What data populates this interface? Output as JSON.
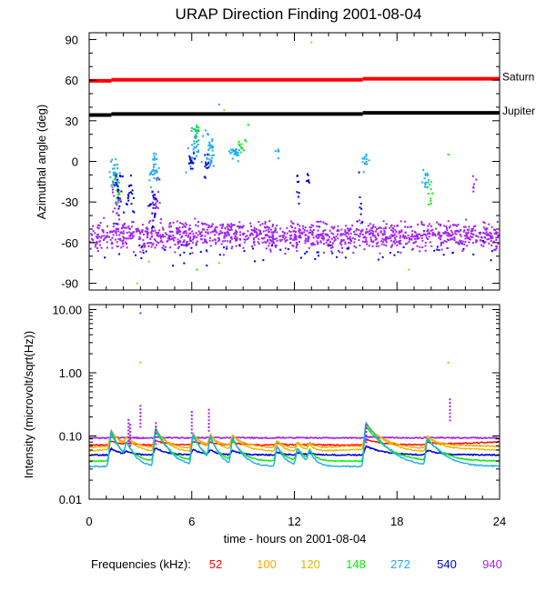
{
  "chart_data": {
    "title": "URAP Direction Finding  2001-08-04",
    "xlabel": "time - hours on 2001-08-04",
    "xlim": [
      0,
      24
    ],
    "x_ticks": [
      "0",
      "6",
      "12",
      "18",
      "24"
    ],
    "top": {
      "type": "scatter",
      "ylabel": "Azimuthal angle (deg)",
      "ylim": [
        -95,
        95
      ],
      "y_ticks": [
        "90",
        "60",
        "30",
        "0",
        "-30",
        "-60",
        "-90"
      ],
      "reference_lines": [
        {
          "name": "Saturn",
          "color": "#ff0000",
          "start": 59.5,
          "end": 61.0
        },
        {
          "name": "Jupiter",
          "color": "#000000",
          "start": 34.2,
          "end": 35.8
        }
      ],
      "clusters": [
        {
          "x": 1.5,
          "y": -10,
          "n": 36,
          "sx": 0.15,
          "sy": 6,
          "freq": "272"
        },
        {
          "x": 1.6,
          "y": -22,
          "n": 14,
          "sx": 0.12,
          "sy": 5,
          "freq": "148"
        },
        {
          "x": 1.7,
          "y": -25,
          "n": 24,
          "sx": 0.15,
          "sy": 10,
          "freq": "540"
        },
        {
          "x": 2.4,
          "y": -28,
          "n": 18,
          "sx": 0.12,
          "sy": 9,
          "freq": "540"
        },
        {
          "x": 3.8,
          "y": -8,
          "n": 32,
          "sx": 0.15,
          "sy": 6,
          "freq": "272"
        },
        {
          "x": 3.7,
          "y": -30,
          "n": 22,
          "sx": 0.12,
          "sy": 11,
          "freq": "540"
        },
        {
          "x": 6.2,
          "y": 12,
          "n": 40,
          "sx": 0.2,
          "sy": 8,
          "freq": "272"
        },
        {
          "x": 6.0,
          "y": 0,
          "n": 16,
          "sx": 0.12,
          "sy": 4,
          "freq": "540"
        },
        {
          "x": 6.3,
          "y": 24,
          "n": 8,
          "sx": 0.1,
          "sy": 4,
          "freq": "148"
        },
        {
          "x": 7.1,
          "y": 7,
          "n": 32,
          "sx": 0.15,
          "sy": 6,
          "freq": "272"
        },
        {
          "x": 6.9,
          "y": -3,
          "n": 12,
          "sx": 0.1,
          "sy": 5,
          "freq": "540"
        },
        {
          "x": 8.5,
          "y": 6,
          "n": 24,
          "sx": 0.15,
          "sy": 3,
          "freq": "272"
        },
        {
          "x": 8.9,
          "y": 11,
          "n": 10,
          "sx": 0.1,
          "sy": 3,
          "freq": "148"
        },
        {
          "x": 11.0,
          "y": 7,
          "n": 6,
          "sx": 0.05,
          "sy": 2,
          "freq": "272"
        },
        {
          "x": 12.2,
          "y": -20,
          "n": 8,
          "sx": 0.05,
          "sy": 7,
          "freq": "540"
        },
        {
          "x": 12.8,
          "y": -12,
          "n": 6,
          "sx": 0.05,
          "sy": 3,
          "freq": "540"
        },
        {
          "x": 16.1,
          "y": 0,
          "n": 14,
          "sx": 0.1,
          "sy": 4,
          "freq": "272"
        },
        {
          "x": 15.9,
          "y": -30,
          "n": 8,
          "sx": 0.08,
          "sy": 10,
          "freq": "540"
        },
        {
          "x": 19.7,
          "y": -13,
          "n": 14,
          "sx": 0.1,
          "sy": 5,
          "freq": "272"
        },
        {
          "x": 19.9,
          "y": -22,
          "n": 10,
          "sx": 0.1,
          "sy": 5,
          "freq": "148"
        },
        {
          "x": 22.5,
          "y": -20,
          "n": 6,
          "sx": 0.05,
          "sy": 5,
          "freq": "940"
        },
        {
          "x": 1.5,
          "y": -33,
          "n": 16,
          "sx": 0.12,
          "sy": 8,
          "freq": "940"
        },
        {
          "x": 3.9,
          "y": -30,
          "n": 14,
          "sx": 0.12,
          "sy": 8,
          "freq": "940"
        }
      ],
      "band": {
        "freq": "940",
        "center": -55,
        "spread": 5,
        "count": 1300
      },
      "band_low": {
        "freq": "540",
        "center": -66,
        "spread": 4,
        "count": 60
      },
      "outliers": [
        {
          "x": 13.0,
          "y": 88,
          "freq": "100"
        },
        {
          "x": 7.6,
          "y": 42,
          "freq": "272"
        },
        {
          "x": 9.3,
          "y": 27,
          "freq": "148"
        },
        {
          "x": 7.9,
          "y": 38,
          "freq": "120"
        },
        {
          "x": 21.0,
          "y": 5,
          "freq": "148"
        },
        {
          "x": 2.8,
          "y": -90,
          "freq": "120"
        },
        {
          "x": 6.3,
          "y": -80,
          "freq": "148"
        },
        {
          "x": 7.6,
          "y": -75,
          "freq": "100"
        },
        {
          "x": 3.5,
          "y": -74,
          "freq": "100"
        },
        {
          "x": 18.7,
          "y": -80,
          "freq": "100"
        },
        {
          "x": 4.9,
          "y": -77,
          "freq": "540"
        },
        {
          "x": 23.5,
          "y": -73,
          "freq": "540"
        },
        {
          "x": 15.0,
          "y": -71,
          "freq": "540"
        }
      ]
    },
    "bottom": {
      "type": "line",
      "ylabel": "Intensity (microvolt/sqrt(Hz))",
      "yscale": "log",
      "ylim": [
        0.01,
        12
      ],
      "y_ticks": [
        "10.00",
        "1.00",
        "0.10",
        "0.01"
      ],
      "baselines": [
        {
          "freq": "940",
          "y": 0.093
        },
        {
          "freq": "52",
          "y": 0.072
        },
        {
          "freq": "100",
          "y": 0.066
        },
        {
          "freq": "120",
          "y": 0.058
        },
        {
          "freq": "540",
          "y": 0.05
        },
        {
          "freq": "148",
          "y": 0.04
        },
        {
          "freq": "272",
          "y": 0.033
        }
      ],
      "bursts": [
        {
          "t": 1.3,
          "amp": 0.06,
          "w": 0.5
        },
        {
          "t": 2.2,
          "amp": 0.025,
          "w": 0.4
        },
        {
          "t": 3.9,
          "amp": 0.07,
          "w": 0.6
        },
        {
          "t": 6.1,
          "amp": 0.05,
          "w": 0.5
        },
        {
          "t": 7.1,
          "amp": 0.04,
          "w": 0.4
        },
        {
          "t": 8.4,
          "amp": 0.04,
          "w": 0.5
        },
        {
          "t": 11.0,
          "amp": 0.025,
          "w": 0.4
        },
        {
          "t": 12.2,
          "amp": 0.02,
          "w": 0.4
        },
        {
          "t": 12.9,
          "amp": 0.015,
          "w": 0.3
        },
        {
          "t": 16.2,
          "amp": 0.09,
          "w": 0.9
        },
        {
          "t": 19.8,
          "amp": 0.04,
          "w": 0.8
        }
      ],
      "spikes": [
        {
          "x": 3.0,
          "y": 8.8,
          "freq": "940"
        },
        {
          "x": 3.0,
          "y": 1.45,
          "freq": "120"
        },
        {
          "x": 21.0,
          "y": 1.45,
          "freq": "100"
        },
        {
          "x": 21.1,
          "y": 0.38,
          "freq": "940"
        },
        {
          "x": 3.0,
          "y": 0.3,
          "freq": "940"
        },
        {
          "x": 6.0,
          "y": 0.24,
          "freq": "940"
        },
        {
          "x": 7.0,
          "y": 0.26,
          "freq": "940"
        },
        {
          "x": 2.3,
          "y": 0.18,
          "freq": "940"
        },
        {
          "x": 2.4,
          "y": 0.15,
          "freq": "940"
        },
        {
          "x": 3.9,
          "y": 0.16,
          "freq": "940"
        },
        {
          "x": 16.2,
          "y": 0.15,
          "freq": "940"
        }
      ]
    },
    "legend": {
      "label": "Frequencies (kHz):",
      "items": [
        {
          "label": "52",
          "color": "#ff0000"
        },
        {
          "label": "100",
          "color": "#ffa500"
        },
        {
          "label": "120",
          "color": "#ddbb00"
        },
        {
          "label": "148",
          "color": "#00ee00"
        },
        {
          "label": "272",
          "color": "#1eaaf0"
        },
        {
          "label": "540",
          "color": "#0000dd"
        },
        {
          "label": "940",
          "color": "#a020f0"
        }
      ]
    }
  }
}
